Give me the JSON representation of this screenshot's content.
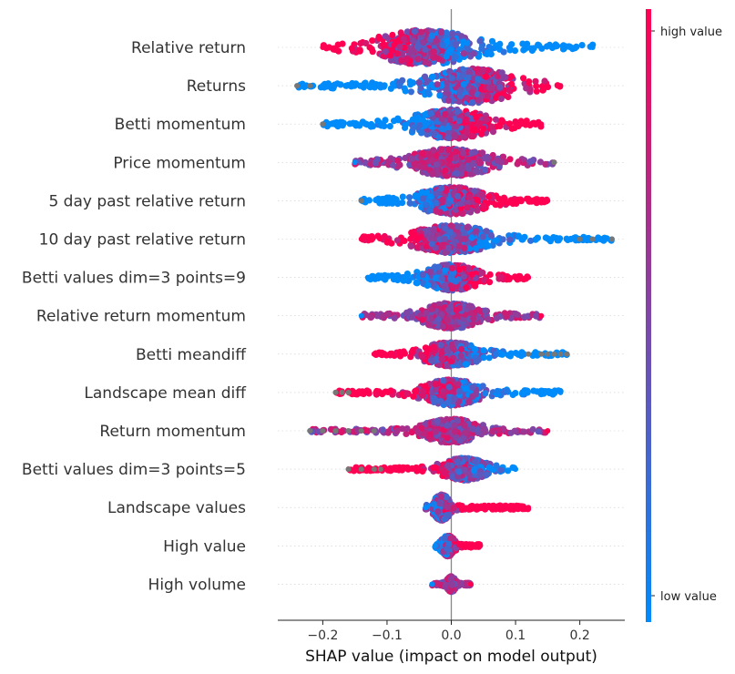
{
  "chart_data": {
    "type": "scatter",
    "subtype": "shap-beeswarm",
    "xlabel": "SHAP value (impact on model output)",
    "xlim": [
      -0.27,
      0.27
    ],
    "xticks": [
      -0.2,
      -0.1,
      0.0,
      0.1,
      0.2
    ],
    "xtick_labels": [
      "−0.2",
      "−0.1",
      "0.0",
      "0.1",
      "0.2"
    ],
    "colorbar": {
      "high_label": "high value",
      "low_label": "low value",
      "colors": [
        "#008bfb",
        "#ff0052"
      ],
      "missing_color": "#777777"
    },
    "features": [
      {
        "name": "Relative return",
        "min": -0.2,
        "max": 0.22,
        "peak": -0.04,
        "peak_width": 0.05,
        "spread": 0.09,
        "thick": 1.0,
        "high_side": "left",
        "grey": []
      },
      {
        "name": "Returns",
        "min": -0.24,
        "max": 0.17,
        "peak": 0.03,
        "peak_width": 0.05,
        "spread": 0.08,
        "thick": 1.0,
        "high_side": "right",
        "grey": [
          -0.24,
          -0.22
        ]
      },
      {
        "name": "Betti momentum",
        "min": -0.2,
        "max": 0.14,
        "peak": 0.0,
        "peak_width": 0.04,
        "spread": 0.07,
        "thick": 0.85,
        "high_side": "right",
        "grey": [
          -0.2
        ]
      },
      {
        "name": "Price momentum",
        "min": -0.15,
        "max": 0.16,
        "peak": 0.0,
        "peak_width": 0.04,
        "spread": 0.07,
        "thick": 0.8,
        "high_side": "mixed",
        "grey": [
          0.16
        ]
      },
      {
        "name": "5 day past relative return",
        "min": -0.14,
        "max": 0.15,
        "peak": 0.0,
        "peak_width": 0.04,
        "spread": 0.06,
        "thick": 0.8,
        "high_side": "right",
        "grey": [
          -0.14
        ]
      },
      {
        "name": "10 day past relative return",
        "min": -0.14,
        "max": 0.25,
        "peak": 0.0,
        "peak_width": 0.04,
        "spread": 0.07,
        "thick": 0.8,
        "high_side": "left",
        "grey": [
          0.2,
          0.22,
          0.25
        ]
      },
      {
        "name": "Betti values dim=3 points=9",
        "min": -0.13,
        "max": 0.12,
        "peak": 0.0,
        "peak_width": 0.04,
        "spread": 0.05,
        "thick": 0.75,
        "high_side": "right",
        "grey": []
      },
      {
        "name": "Relative return momentum",
        "min": -0.14,
        "max": 0.14,
        "peak": 0.0,
        "peak_width": 0.04,
        "spread": 0.05,
        "thick": 0.75,
        "high_side": "mixed",
        "grey": []
      },
      {
        "name": "Betti meandiff",
        "min": -0.12,
        "max": 0.18,
        "peak": 0.0,
        "peak_width": 0.04,
        "spread": 0.05,
        "thick": 0.7,
        "high_side": "left",
        "grey": [
          0.12,
          0.14,
          0.15,
          0.16,
          0.17,
          0.18
        ]
      },
      {
        "name": "Landscape mean diff",
        "min": -0.18,
        "max": 0.17,
        "peak": 0.0,
        "peak_width": 0.04,
        "spread": 0.05,
        "thick": 0.75,
        "high_side": "left",
        "grey": [
          -0.18,
          -0.17,
          -0.16
        ]
      },
      {
        "name": "Return momentum",
        "min": -0.22,
        "max": 0.15,
        "peak": 0.0,
        "peak_width": 0.04,
        "spread": 0.05,
        "thick": 0.7,
        "high_side": "mixed",
        "grey": [
          -0.22,
          -0.2,
          -0.18,
          -0.16,
          -0.14,
          -0.12
        ]
      },
      {
        "name": "Betti values dim=3 points=5",
        "min": -0.16,
        "max": 0.1,
        "peak": 0.02,
        "peak_width": 0.03,
        "spread": 0.04,
        "thick": 0.65,
        "high_side": "left",
        "grey": [
          -0.16,
          -0.14,
          -0.12,
          -0.11
        ]
      },
      {
        "name": "Landscape values",
        "min": -0.04,
        "max": 0.12,
        "peak": -0.015,
        "peak_width": 0.008,
        "spread": 0.015,
        "thick": 0.75,
        "high_side": "right",
        "grey": []
      },
      {
        "name": "High value",
        "min": -0.025,
        "max": 0.045,
        "peak": -0.005,
        "peak_width": 0.006,
        "spread": 0.012,
        "thick": 0.6,
        "high_side": "right",
        "grey": []
      },
      {
        "name": "High volume",
        "min": -0.03,
        "max": 0.03,
        "peak": 0.0,
        "peak_width": 0.005,
        "spread": 0.008,
        "thick": 0.45,
        "high_side": "mixed",
        "grey": []
      }
    ]
  }
}
